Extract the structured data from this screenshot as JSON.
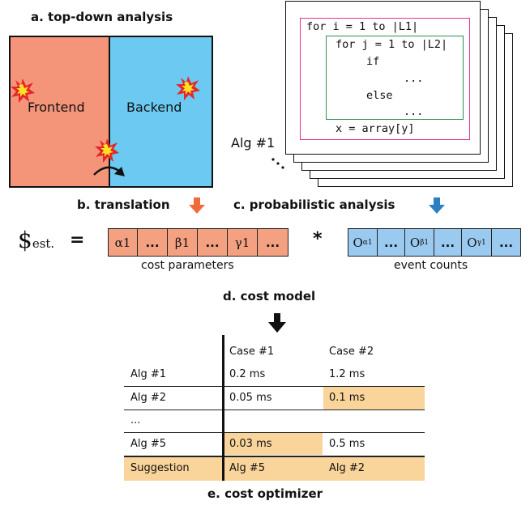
{
  "sections": {
    "a": "a. top-down analysis",
    "b": "b. translation",
    "c": "c. probabilistic analysis",
    "d": "d. cost model",
    "e": "e. cost optimizer"
  },
  "topdown": {
    "frontend": "Frontend",
    "backend": "Backend"
  },
  "algorithm": {
    "label": "Alg #1",
    "code": [
      "for i = 1 to |L1|",
      "for j = 1 to |L2|",
      "if",
      "...",
      "else",
      "...",
      "x = array[y]"
    ]
  },
  "equation": {
    "lhs_main": "$",
    "lhs_sub": "est.",
    "equals": "=",
    "times": "*",
    "cost_params": [
      {
        "main": "α1",
        "sub": ""
      },
      {
        "main": "...",
        "sub": ""
      },
      {
        "main": "β1",
        "sub": ""
      },
      {
        "main": "...",
        "sub": ""
      },
      {
        "main": "γ1",
        "sub": ""
      },
      {
        "main": "...",
        "sub": ""
      }
    ],
    "cost_params_caption": "cost parameters",
    "event_counts": [
      {
        "main": "O",
        "sub": "α1"
      },
      {
        "main": "...",
        "sub": ""
      },
      {
        "main": "O",
        "sub": "β1"
      },
      {
        "main": "...",
        "sub": ""
      },
      {
        "main": "O",
        "sub": "γ1"
      },
      {
        "main": "...",
        "sub": ""
      }
    ],
    "event_counts_caption": "event counts"
  },
  "table": {
    "headers": [
      "",
      "Case #1",
      "Case #2"
    ],
    "rows": [
      [
        "Alg #1",
        "0.2 ms",
        "1.2 ms"
      ],
      [
        "Alg #2",
        "0.05 ms",
        "0.1 ms"
      ],
      [
        "...",
        "",
        ""
      ],
      [
        "Alg #5",
        "0.03 ms",
        "0.5 ms"
      ]
    ],
    "suggestion": [
      "Suggestion",
      "Alg #5",
      "Alg #2"
    ],
    "highlight_color": "#f9d49b"
  },
  "colors": {
    "frontend": "#f4957a",
    "backend": "#6ccaf2",
    "cost_param_fill": "#f4a182",
    "event_count_fill": "#9bcaf0",
    "outer_loop": "#e0338a",
    "inner_loop": "#2f8f4e",
    "arrow_translation": "#f26a3a",
    "arrow_probabilistic": "#2c7fc4"
  }
}
